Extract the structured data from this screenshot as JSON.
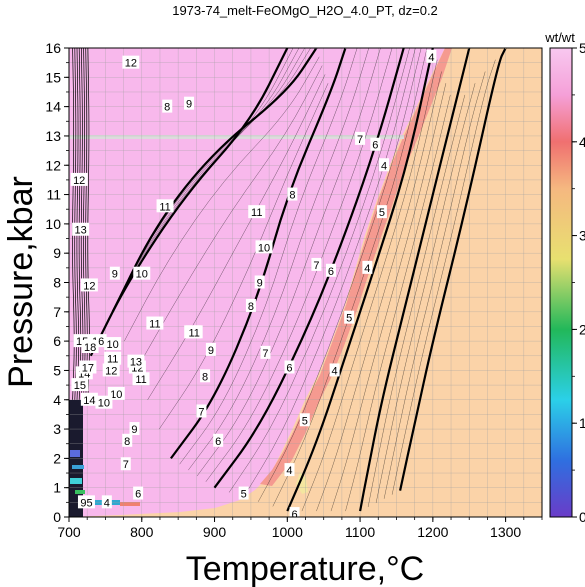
{
  "chart_data": {
    "type": "heatmap",
    "title": "1973-74_melt-FeOMgO_H2O_4.0_PT, dz=0.2",
    "xlabel": "Temperature,°C",
    "ylabel": "Pressure,kbar",
    "xlim": [
      700,
      1350
    ],
    "ylim": [
      0,
      16
    ],
    "x_ticks": [
      700,
      800,
      900,
      1000,
      1100,
      1200,
      1300
    ],
    "y_ticks": [
      0,
      1,
      2,
      3,
      4,
      5,
      6,
      7,
      8,
      9,
      10,
      11,
      12,
      13,
      14,
      15,
      16
    ],
    "grid": true,
    "colorbar": {
      "label": "wt/wt",
      "range": [
        0,
        5
      ],
      "ticks": [
        0,
        1,
        2,
        3,
        4,
        5
      ],
      "stops": [
        "#6a3cc8",
        "#2f6fe0",
        "#2bd0e8",
        "#22b85a",
        "#e8e070",
        "#f5b880",
        "#f07070",
        "#f5a0d8",
        "#f8c8f0"
      ]
    },
    "colors": {
      "subsolidus_field": "#fbd3a8",
      "melt_field": "#f8b8ec",
      "near_solidus_band": "#f59a90",
      "contour": "#000000"
    },
    "bold_contours": [
      {
        "value": 4,
        "points": [
          [
            1155,
            0.9
          ],
          [
            1175,
            3.2
          ],
          [
            1200,
            6
          ],
          [
            1245,
            10.5
          ],
          [
            1290,
            15.5
          ],
          [
            1300,
            16
          ]
        ]
      },
      {
        "value": 5,
        "points": [
          [
            1100,
            0.2
          ],
          [
            1110,
            1.5
          ],
          [
            1130,
            4
          ],
          [
            1160,
            7
          ],
          [
            1195,
            10.5
          ],
          [
            1230,
            14
          ],
          [
            1250,
            16
          ]
        ]
      },
      {
        "value": 6,
        "points": [
          [
            1000,
            0.2
          ],
          [
            1040,
            2.5
          ],
          [
            1080,
            5.5
          ],
          [
            1120,
            8.5
          ],
          [
            1165,
            12
          ],
          [
            1200,
            16
          ]
        ]
      },
      {
        "value": 7,
        "points": [
          [
            900,
            1.0
          ],
          [
            960,
            3
          ],
          [
            1020,
            6
          ],
          [
            1070,
            9
          ],
          [
            1120,
            12.5
          ],
          [
            1160,
            16
          ]
        ]
      },
      {
        "value": 8,
        "points": [
          [
            840,
            2
          ],
          [
            900,
            4
          ],
          [
            960,
            7.5
          ],
          [
            1000,
            11
          ],
          [
            1060,
            14.5
          ],
          [
            1080,
            16
          ]
        ]
      },
      {
        "value": 9,
        "points": [
          [
            760,
            7
          ],
          [
            820,
            10
          ],
          [
            900,
            12.5
          ],
          [
            1000,
            14.5
          ],
          [
            1040,
            16
          ]
        ]
      },
      {
        "value": 10,
        "points": [
          [
            730,
            5.5
          ],
          [
            780,
            8
          ],
          [
            860,
            11
          ],
          [
            950,
            13.5
          ],
          [
            1000,
            16
          ]
        ]
      }
    ],
    "contour_labels": [
      {
        "text": "4",
        "x": 1198,
        "y": 15.7
      },
      {
        "text": "4",
        "x": 1133,
        "y": 12.0
      },
      {
        "text": "4",
        "x": 1110,
        "y": 8.5
      },
      {
        "text": "4",
        "x": 1065,
        "y": 5.0
      },
      {
        "text": "4",
        "x": 1003,
        "y": 1.6
      },
      {
        "text": "5",
        "x": 1130,
        "y": 10.4
      },
      {
        "text": "5",
        "x": 1085,
        "y": 6.8
      },
      {
        "text": "5",
        "x": 1024,
        "y": 3.3
      },
      {
        "text": "5",
        "x": 940,
        "y": 0.8
      },
      {
        "text": "6",
        "x": 1121,
        "y": 12.7
      },
      {
        "text": "6",
        "x": 1060,
        "y": 8.4
      },
      {
        "text": "6",
        "x": 1003,
        "y": 5.1
      },
      {
        "text": "6",
        "x": 905,
        "y": 2.6
      },
      {
        "text": "6",
        "x": 795,
        "y": 0.8
      },
      {
        "text": "6",
        "x": 1010,
        "y": 0.1
      },
      {
        "text": "7",
        "x": 1100,
        "y": 12.9
      },
      {
        "text": "7",
        "x": 1040,
        "y": 8.6
      },
      {
        "text": "7",
        "x": 970,
        "y": 5.6
      },
      {
        "text": "7",
        "x": 882,
        "y": 3.6
      },
      {
        "text": "7",
        "x": 778,
        "y": 1.8
      },
      {
        "text": "8",
        "x": 835,
        "y": 14.0
      },
      {
        "text": "8",
        "x": 1007,
        "y": 11.0
      },
      {
        "text": "8",
        "x": 950,
        "y": 7.2
      },
      {
        "text": "8",
        "x": 887,
        "y": 4.8
      },
      {
        "text": "8",
        "x": 780,
        "y": 2.6
      },
      {
        "text": "9",
        "x": 865,
        "y": 14.1
      },
      {
        "text": "9",
        "x": 763,
        "y": 8.3
      },
      {
        "text": "9",
        "x": 962,
        "y": 8.0
      },
      {
        "text": "9",
        "x": 895,
        "y": 5.7
      },
      {
        "text": "9",
        "x": 790,
        "y": 3.0
      },
      {
        "text": "10",
        "x": 800,
        "y": 8.3
      },
      {
        "text": "10",
        "x": 968,
        "y": 9.2
      },
      {
        "text": "10",
        "x": 870,
        "y": 6.3
      },
      {
        "text": "10",
        "x": 760,
        "y": 5.9
      },
      {
        "text": "10",
        "x": 765,
        "y": 4.2
      },
      {
        "text": "10",
        "x": 748,
        "y": 3.9
      },
      {
        "text": "11",
        "x": 832,
        "y": 10.6
      },
      {
        "text": "11",
        "x": 958,
        "y": 10.4
      },
      {
        "text": "11",
        "x": 818,
        "y": 6.6
      },
      {
        "text": "11",
        "x": 872,
        "y": 6.3
      },
      {
        "text": "11",
        "x": 760,
        "y": 5.4
      },
      {
        "text": "11",
        "x": 799,
        "y": 4.7
      },
      {
        "text": "12",
        "x": 785,
        "y": 15.5
      },
      {
        "text": "12",
        "x": 714,
        "y": 11.5
      },
      {
        "text": "12",
        "x": 728,
        "y": 7.9
      },
      {
        "text": "12",
        "x": 794,
        "y": 5.1
      },
      {
        "text": "12",
        "x": 758,
        "y": 5.0
      },
      {
        "text": "13",
        "x": 716,
        "y": 9.8
      },
      {
        "text": "13",
        "x": 792,
        "y": 5.3
      },
      {
        "text": "14",
        "x": 721,
        "y": 4.9
      },
      {
        "text": "14",
        "x": 728,
        "y": 4.0
      },
      {
        "text": "15",
        "x": 718,
        "y": 6.0
      },
      {
        "text": "15",
        "x": 715,
        "y": 4.5
      },
      {
        "text": "16",
        "x": 740,
        "y": 6.0
      },
      {
        "text": "17",
        "x": 726,
        "y": 5.1
      },
      {
        "text": "18",
        "x": 729,
        "y": 5.8
      },
      {
        "text": "95",
        "x": 724,
        "y": 0.5
      },
      {
        "text": "4",
        "x": 752,
        "y": 0.5
      }
    ]
  }
}
